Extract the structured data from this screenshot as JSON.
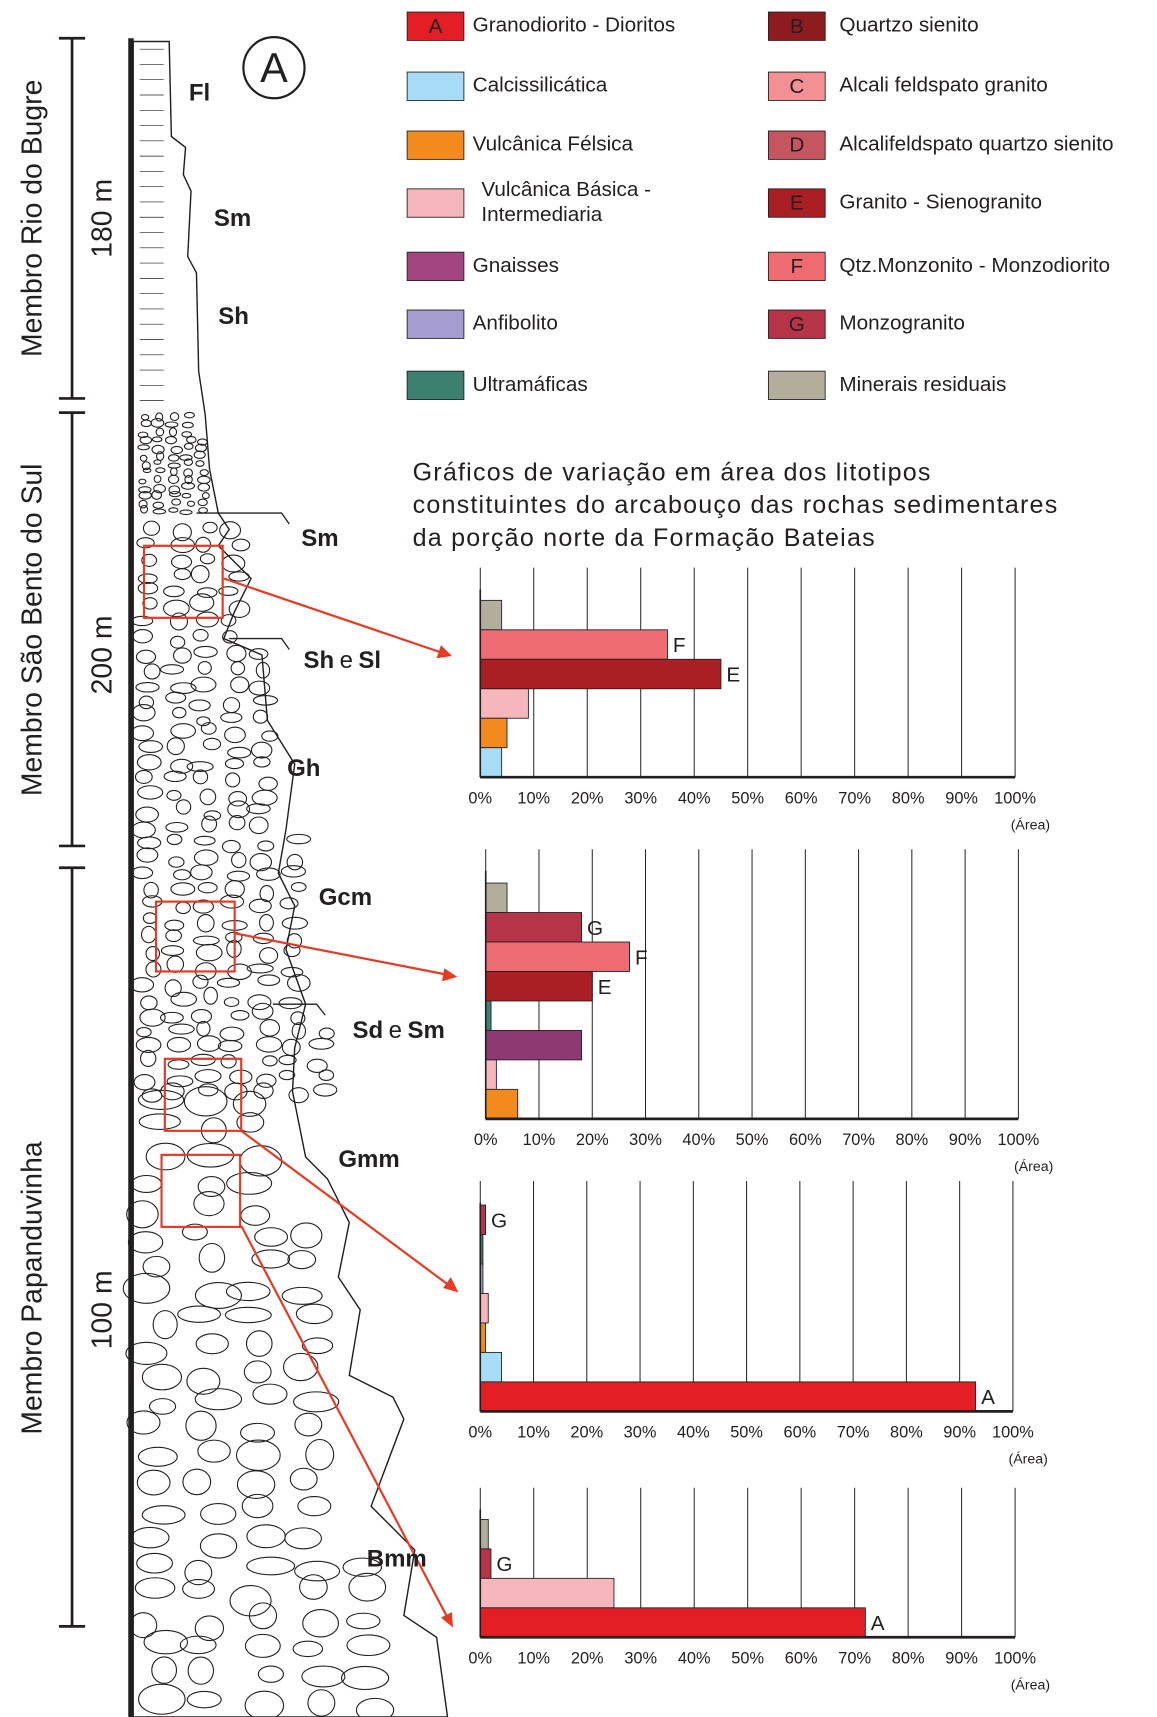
{
  "panel_label": "A",
  "title": [
    "Gráficos de variação em área dos litotipos",
    "constituintes do arcabouço das rochas sedimentares",
    "da porção norte da Formação Bateias"
  ],
  "legend": [
    {
      "code": "A",
      "name": [
        "Granodiorito - Dioritos"
      ],
      "color": "#e31e24"
    },
    {
      "code": null,
      "name": [
        "Calcissilicática"
      ],
      "color": "#a6dcf5"
    },
    {
      "code": null,
      "name": [
        "Vulcânica Félsica"
      ],
      "color": "#f28a1e"
    },
    {
      "code": null,
      "name": [
        "Vulcânica Básica -",
        "Intermediaria"
      ],
      "color": "#f5b6bc"
    },
    {
      "code": null,
      "name": [
        "Gnaisses"
      ],
      "color": "#a3467f"
    },
    {
      "code": null,
      "name": [
        "Anfibolito"
      ],
      "color": "#a59ccf"
    },
    {
      "code": null,
      "name": [
        "Ultramáficas"
      ],
      "color": "#3c8070"
    },
    {
      "code": "B",
      "name": [
        "Quartzo sienito"
      ],
      "color": "#8e1c1f"
    },
    {
      "code": "C",
      "name": [
        "Alcali feldspato granito"
      ],
      "color": "#f29093"
    },
    {
      "code": "D",
      "name": [
        "Alcalifeldspato quartzo sienito"
      ],
      "color": "#c5555f"
    },
    {
      "code": "E",
      "name": [
        "Granito - Sienogranito"
      ],
      "color": "#aa1f24"
    },
    {
      "code": "F",
      "name": [
        "Qtz.Monzonito - Monzodiorito"
      ],
      "color": "#ee6b72"
    },
    {
      "code": "G",
      "name": [
        "Monzogranito"
      ],
      "color": "#b53447"
    },
    {
      "code": null,
      "name": [
        "Minerais residuais"
      ],
      "color": "#b3ae9c"
    }
  ],
  "members": [
    {
      "name": "Membro Rio do Bugre",
      "thickness": "180 m"
    },
    {
      "name": "Membro São Bento do Sul",
      "thickness": "200 m"
    },
    {
      "name": "Membro Papanduvinha",
      "thickness": "100 m"
    }
  ],
  "facies": [
    [
      "Fl"
    ],
    [
      "Sm"
    ],
    [
      "Sh"
    ],
    [
      "Sm"
    ],
    [
      "Sh",
      "e",
      "Sl"
    ],
    [
      "Gh"
    ],
    [
      "Gcm"
    ],
    [
      "Sd",
      "e",
      "Sm"
    ],
    [
      "Gmm"
    ],
    [
      "Bmm"
    ]
  ],
  "chart_data": [
    {
      "type": "bar",
      "orientation": "horizontal",
      "categories": [
        null,
        null,
        null,
        null,
        null,
        null
      ],
      "values": [
        4,
        35,
        45,
        9,
        5,
        4
      ],
      "bar_labels": [
        null,
        "F",
        "E",
        null,
        null,
        null
      ],
      "colors": [
        "#b3ae9c",
        "#ee6b72",
        "#aa1f24",
        "#f5b6bc",
        "#f28a1e",
        "#a6dcf5"
      ],
      "xlim": [
        0,
        100
      ],
      "xticks": [
        {
          "value": 0,
          "label": "0%"
        },
        {
          "value": 10,
          "label": "10%"
        },
        {
          "value": 20,
          "label": "20%"
        },
        {
          "value": 30,
          "label": "30%"
        },
        {
          "value": 40,
          "label": "40%"
        },
        {
          "value": 50,
          "label": "50%"
        },
        {
          "value": 60,
          "label": "60%"
        },
        {
          "value": 70,
          "label": "70%"
        },
        {
          "value": 80,
          "label": "80%"
        },
        {
          "value": 90,
          "label": "90%"
        },
        {
          "value": 100,
          "label": "100%"
        }
      ],
      "xlabel": "(Área)",
      "grid": true
    },
    {
      "type": "bar",
      "orientation": "horizontal",
      "categories": [
        null,
        null,
        null,
        null,
        null,
        null,
        null,
        null
      ],
      "values": [
        4,
        18,
        27,
        20,
        1,
        18,
        2,
        6
      ],
      "bar_labels": [
        null,
        "G",
        "F",
        "E",
        null,
        null,
        null,
        null
      ],
      "colors": [
        "#b3ae9c",
        "#b53447",
        "#ee6b72",
        "#aa1f24",
        "#3c8070",
        "#8e3a72",
        "#f5b6bc",
        "#f28a1e"
      ],
      "xlim": [
        0,
        100
      ],
      "xticks": [
        {
          "value": 0,
          "label": "0%"
        },
        {
          "value": 10,
          "label": "10%"
        },
        {
          "value": 20,
          "label": "20%"
        },
        {
          "value": 30,
          "label": "30%"
        },
        {
          "value": 40,
          "label": "40%"
        },
        {
          "value": 50,
          "label": "50%"
        },
        {
          "value": 60,
          "label": "60%"
        },
        {
          "value": 70,
          "label": "70%"
        },
        {
          "value": 80,
          "label": "80%"
        },
        {
          "value": 90,
          "label": "90%"
        },
        {
          "value": 100,
          "label": "100%"
        }
      ],
      "xlabel": "(Área)",
      "grid": true
    },
    {
      "type": "bar",
      "orientation": "horizontal",
      "categories": [
        null,
        null,
        null,
        null,
        null,
        null,
        null
      ],
      "values": [
        1,
        0.5,
        0.5,
        1.5,
        1,
        4,
        93
      ],
      "bar_labels": [
        "G",
        null,
        null,
        null,
        null,
        null,
        "A"
      ],
      "colors": [
        "#b53447",
        "#3c8070",
        "#a59ccf",
        "#f5b6bc",
        "#f28a1e",
        "#a6dcf5",
        "#e31e24"
      ],
      "xlim": [
        0,
        100
      ],
      "xticks": [
        {
          "value": 0,
          "label": "0%"
        },
        {
          "value": 10,
          "label": "10%"
        },
        {
          "value": 20,
          "label": "20%"
        },
        {
          "value": 30,
          "label": "30%"
        },
        {
          "value": 40,
          "label": "40%"
        },
        {
          "value": 50,
          "label": "50%"
        },
        {
          "value": 60,
          "label": "60%"
        },
        {
          "value": 70,
          "label": "70%"
        },
        {
          "value": 80,
          "label": "80%"
        },
        {
          "value": 90,
          "label": "90%"
        },
        {
          "value": 100,
          "label": "100%"
        }
      ],
      "xlabel": "(Área)",
      "grid": true
    },
    {
      "type": "bar",
      "orientation": "horizontal",
      "categories": [
        null,
        null,
        null,
        null
      ],
      "values": [
        1.5,
        2,
        25,
        72
      ],
      "bar_labels": [
        null,
        "G",
        null,
        "A"
      ],
      "colors": [
        "#b3ae9c",
        "#b53447",
        "#f5b6bc",
        "#e31e24"
      ],
      "xlim": [
        0,
        100
      ],
      "xticks": [
        {
          "value": 0,
          "label": "0%"
        },
        {
          "value": 10,
          "label": "10%"
        },
        {
          "value": 20,
          "label": "20%"
        },
        {
          "value": 30,
          "label": "30%"
        },
        {
          "value": 40,
          "label": "40%"
        },
        {
          "value": 50,
          "label": "50%"
        },
        {
          "value": 60,
          "label": "60%"
        },
        {
          "value": 70,
          "label": "70%"
        },
        {
          "value": 80,
          "label": "80%"
        },
        {
          "value": 90,
          "label": "90%"
        },
        {
          "value": 100,
          "label": "100%"
        }
      ],
      "xlabel": "(Área)",
      "grid": true
    }
  ]
}
